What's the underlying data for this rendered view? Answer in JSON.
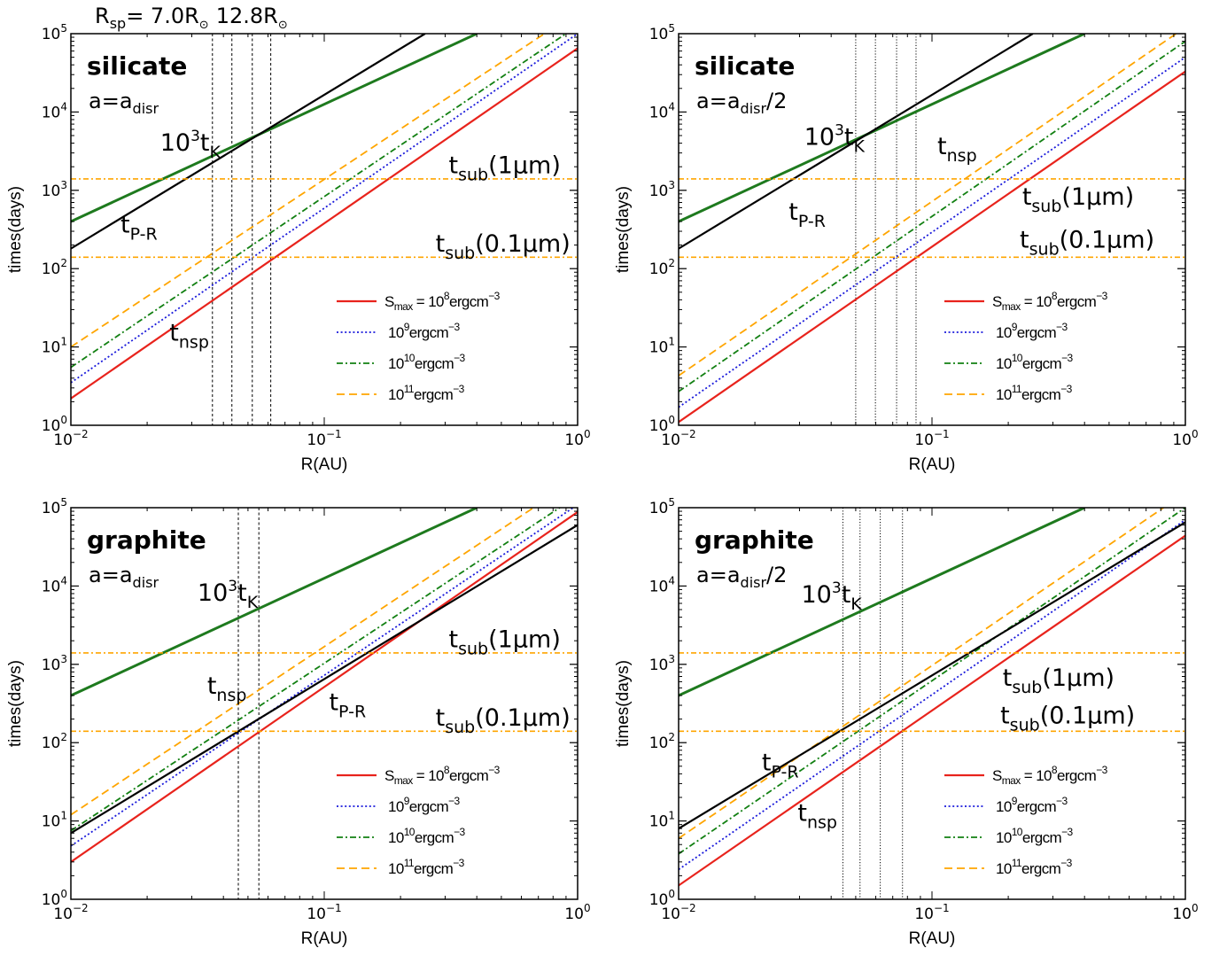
{
  "top_annotation": {
    "prefix": "R",
    "prefix_sub": "sp",
    "value1": "= 7.0R",
    "value2": "12.8R",
    "sun_symbol": "⊙"
  },
  "chart_data": [
    {
      "type": "line",
      "panel": "top-left",
      "material": "silicate",
      "size_label": {
        "base": "a=a",
        "sub": "disr",
        "suffix": ""
      },
      "xlabel": "R(AU)",
      "ylabel": "times(days)",
      "xscale": "log",
      "yscale": "log",
      "xlim": [
        0.01,
        1
      ],
      "ylim": [
        1,
        100000
      ],
      "x_ticks": [
        {
          "base": "10",
          "exp": "−2"
        },
        {
          "base": "10",
          "exp": "−1"
        },
        {
          "base": "10",
          "exp": "0"
        }
      ],
      "y_ticks": [
        {
          "base": "10",
          "exp": "0"
        },
        {
          "base": "10",
          "exp": "1"
        },
        {
          "base": "10",
          "exp": "2"
        },
        {
          "base": "10",
          "exp": "3"
        },
        {
          "base": "10",
          "exp": "4"
        },
        {
          "base": "10",
          "exp": "5"
        }
      ],
      "series": [
        {
          "key": "s8",
          "x": [
            0.01,
            1
          ],
          "y": [
            2.2,
            65000
          ]
        },
        {
          "key": "s9",
          "x": [
            0.01,
            1
          ],
          "y": [
            3.5,
            100000
          ]
        },
        {
          "key": "s10",
          "x": [
            0.01,
            0.9
          ],
          "y": [
            5.5,
            100000
          ]
        },
        {
          "key": "s11",
          "x": [
            0.01,
            0.74
          ],
          "y": [
            10,
            100000
          ]
        },
        {
          "key": "tk",
          "x": [
            0.01,
            0.4
          ],
          "y": [
            400,
            100000
          ]
        },
        {
          "key": "tpr",
          "x": [
            0.01,
            0.25
          ],
          "y": [
            180,
            100000
          ]
        },
        {
          "key": "sub1",
          "x": [
            0.01,
            1
          ],
          "y": [
            1400,
            1400
          ]
        },
        {
          "key": "sub01",
          "x": [
            0.01,
            1
          ],
          "y": [
            140,
            140
          ]
        }
      ],
      "vlines": [
        0.0362,
        0.0432,
        0.052,
        0.0615
      ],
      "vline_style": "dashed",
      "annotations": [
        {
          "base": "10",
          "sup": "3",
          "mid": "t",
          "sub": "K",
          "tail": "",
          "x": 0.0225,
          "y": 3200
        },
        {
          "base": "t",
          "sup": "",
          "mid": "",
          "sub": "P-R",
          "tail": "",
          "x": 0.0157,
          "y": 290
        },
        {
          "base": "t",
          "sup": "",
          "mid": "",
          "sub": "nsp",
          "tail": "",
          "x": 0.0245,
          "y": 12
        },
        {
          "base": "t",
          "sup": "",
          "mid": "",
          "sub": "sub",
          "tail": "(1μm)",
          "x": 0.31,
          "y": 1650
        },
        {
          "base": "t",
          "sup": "",
          "mid": "",
          "sub": "sub",
          "tail": "(0.1μm)",
          "x": 0.275,
          "y": 165
        }
      ],
      "legend": [
        {
          "key": "s8",
          "prefix": "S",
          "prefix_sub": "max",
          "base": " = 10",
          "exp": "8",
          "unit": "ergcm",
          "unit_exp": "−3"
        },
        {
          "key": "s9",
          "prefix": "",
          "prefix_sub": "",
          "base": "10",
          "exp": "9",
          "unit": "ergcm",
          "unit_exp": "−3"
        },
        {
          "key": "s10",
          "prefix": "",
          "prefix_sub": "",
          "base": "10",
          "exp": "10",
          "unit": "ergcm",
          "unit_exp": "−3"
        },
        {
          "key": "s11",
          "prefix": "",
          "prefix_sub": "",
          "base": "10",
          "exp": "11",
          "unit": "ergcm",
          "unit_exp": "−3"
        }
      ]
    },
    {
      "type": "line",
      "panel": "top-right",
      "material": "silicate",
      "size_label": {
        "base": "a=a",
        "sub": "disr",
        "suffix": "/2"
      },
      "xlabel": "R(AU)",
      "ylabel": "times(days)",
      "xscale": "log",
      "yscale": "log",
      "xlim": [
        0.01,
        1
      ],
      "ylim": [
        1,
        100000
      ],
      "x_ticks": [
        {
          "base": "10",
          "exp": "−2"
        },
        {
          "base": "10",
          "exp": "−1"
        },
        {
          "base": "10",
          "exp": "0"
        }
      ],
      "y_ticks": [
        {
          "base": "10",
          "exp": "0"
        },
        {
          "base": "10",
          "exp": "1"
        },
        {
          "base": "10",
          "exp": "2"
        },
        {
          "base": "10",
          "exp": "3"
        },
        {
          "base": "10",
          "exp": "4"
        },
        {
          "base": "10",
          "exp": "5"
        }
      ],
      "series": [
        {
          "key": "s8",
          "x": [
            0.01,
            1
          ],
          "y": [
            1.1,
            33000
          ]
        },
        {
          "key": "s9",
          "x": [
            0.01,
            1
          ],
          "y": [
            1.7,
            50000
          ]
        },
        {
          "key": "s10",
          "x": [
            0.01,
            1
          ],
          "y": [
            2.7,
            80000
          ]
        },
        {
          "key": "s11",
          "x": [
            0.01,
            0.92
          ],
          "y": [
            4.3,
            100000
          ]
        },
        {
          "key": "tk",
          "x": [
            0.01,
            0.4
          ],
          "y": [
            400,
            100000
          ]
        },
        {
          "key": "tpr",
          "x": [
            0.01,
            0.25
          ],
          "y": [
            180,
            100000
          ]
        },
        {
          "key": "sub1",
          "x": [
            0.01,
            1
          ],
          "y": [
            1400,
            1400
          ]
        },
        {
          "key": "sub01",
          "x": [
            0.01,
            1
          ],
          "y": [
            140,
            140
          ]
        }
      ],
      "vlines": [
        0.05,
        0.0598,
        0.0725,
        0.0865
      ],
      "vline_style": "dotted",
      "annotations": [
        {
          "base": "10",
          "sup": "3",
          "mid": "t",
          "sub": "K",
          "tail": "",
          "x": 0.0313,
          "y": 3800
        },
        {
          "base": "t",
          "sup": "",
          "mid": "",
          "sub": "P-R",
          "tail": "",
          "x": 0.0272,
          "y": 420
        },
        {
          "base": "t",
          "sup": "",
          "mid": "",
          "sub": "nsp",
          "tail": "",
          "x": 0.105,
          "y": 2900
        },
        {
          "base": "t",
          "sup": "",
          "mid": "",
          "sub": "sub",
          "tail": "(1μm)",
          "x": 0.227,
          "y": 660
        },
        {
          "base": "t",
          "sup": "",
          "mid": "",
          "sub": "sub",
          "tail": "(0.1μm)",
          "x": 0.222,
          "y": 185
        }
      ],
      "legend": [
        {
          "key": "s8",
          "prefix": "S",
          "prefix_sub": "max",
          "base": " = 10",
          "exp": "8",
          "unit": "ergcm",
          "unit_exp": "−3"
        },
        {
          "key": "s9",
          "prefix": "",
          "prefix_sub": "",
          "base": "10",
          "exp": "9",
          "unit": "ergcm",
          "unit_exp": "−3"
        },
        {
          "key": "s10",
          "prefix": "",
          "prefix_sub": "",
          "base": "10",
          "exp": "10",
          "unit": "ergcm",
          "unit_exp": "−3"
        },
        {
          "key": "s11",
          "prefix": "",
          "prefix_sub": "",
          "base": "10",
          "exp": "11",
          "unit": "ergcm",
          "unit_exp": "−3"
        }
      ]
    },
    {
      "type": "line",
      "panel": "bottom-left",
      "material": "graphite",
      "size_label": {
        "base": "a=a",
        "sub": "disr",
        "suffix": ""
      },
      "xlabel": "R(AU)",
      "ylabel": "times(days)",
      "xscale": "log",
      "yscale": "log",
      "xlim": [
        0.01,
        1
      ],
      "ylim": [
        1,
        100000
      ],
      "x_ticks": [
        {
          "base": "10",
          "exp": "−2"
        },
        {
          "base": "10",
          "exp": "−1"
        },
        {
          "base": "10",
          "exp": "0"
        }
      ],
      "y_ticks": [
        {
          "base": "10",
          "exp": "0"
        },
        {
          "base": "10",
          "exp": "1"
        },
        {
          "base": "10",
          "exp": "2"
        },
        {
          "base": "10",
          "exp": "3"
        },
        {
          "base": "10",
          "exp": "4"
        },
        {
          "base": "10",
          "exp": "5"
        }
      ],
      "series": [
        {
          "key": "s8",
          "x": [
            0.01,
            1
          ],
          "y": [
            3,
            88000
          ]
        },
        {
          "key": "s9",
          "x": [
            0.01,
            0.96
          ],
          "y": [
            4.8,
            100000
          ]
        },
        {
          "key": "s10",
          "x": [
            0.01,
            0.85
          ],
          "y": [
            7.5,
            100000
          ]
        },
        {
          "key": "s11",
          "x": [
            0.01,
            0.67
          ],
          "y": [
            12,
            100000
          ]
        },
        {
          "key": "tk",
          "x": [
            0.01,
            0.4
          ],
          "y": [
            400,
            100000
          ]
        },
        {
          "key": "tpr",
          "x": [
            0.01,
            1
          ],
          "y": [
            7,
            60000
          ]
        },
        {
          "key": "sub1",
          "x": [
            0.01,
            1
          ],
          "y": [
            1400,
            1400
          ]
        },
        {
          "key": "sub01",
          "x": [
            0.01,
            1
          ],
          "y": [
            140,
            140
          ]
        }
      ],
      "vlines": [
        0.0458,
        0.0552
      ],
      "vline_style": "dashed",
      "annotations": [
        {
          "base": "10",
          "sup": "3",
          "mid": "t",
          "sub": "K",
          "tail": "",
          "x": 0.0316,
          "y": 6500
        },
        {
          "base": "t",
          "sup": "",
          "mid": "",
          "sub": "nsp",
          "tail": "",
          "x": 0.0345,
          "y": 420
        },
        {
          "base": "t",
          "sup": "",
          "mid": "",
          "sub": "P-R",
          "tail": "",
          "x": 0.1045,
          "y": 260
        },
        {
          "base": "t",
          "sup": "",
          "mid": "",
          "sub": "sub",
          "tail": "(1μm)",
          "x": 0.31,
          "y": 1650
        },
        {
          "base": "t",
          "sup": "",
          "mid": "",
          "sub": "sub",
          "tail": "(0.1μm)",
          "x": 0.275,
          "y": 165
        }
      ],
      "legend": [
        {
          "key": "s8",
          "prefix": "S",
          "prefix_sub": "max",
          "base": " = 10",
          "exp": "8",
          "unit": "ergcm",
          "unit_exp": "−3"
        },
        {
          "key": "s9",
          "prefix": "",
          "prefix_sub": "",
          "base": "10",
          "exp": "9",
          "unit": "ergcm",
          "unit_exp": "−3"
        },
        {
          "key": "s10",
          "prefix": "",
          "prefix_sub": "",
          "base": "10",
          "exp": "10",
          "unit": "ergcm",
          "unit_exp": "−3"
        },
        {
          "key": "s11",
          "prefix": "",
          "prefix_sub": "",
          "base": "10",
          "exp": "11",
          "unit": "ergcm",
          "unit_exp": "−3"
        }
      ]
    },
    {
      "type": "line",
      "panel": "bottom-right",
      "material": "graphite",
      "size_label": {
        "base": "a=a",
        "sub": "disr",
        "suffix": "/2"
      },
      "xlabel": "R(AU)",
      "ylabel": "times(days)",
      "xscale": "log",
      "yscale": "log",
      "xlim": [
        0.01,
        1
      ],
      "ylim": [
        1,
        100000
      ],
      "x_ticks": [
        {
          "base": "10",
          "exp": "−2"
        },
        {
          "base": "10",
          "exp": "−1"
        },
        {
          "base": "10",
          "exp": "0"
        }
      ],
      "y_ticks": [
        {
          "base": "10",
          "exp": "0"
        },
        {
          "base": "10",
          "exp": "1"
        },
        {
          "base": "10",
          "exp": "2"
        },
        {
          "base": "10",
          "exp": "3"
        },
        {
          "base": "10",
          "exp": "4"
        },
        {
          "base": "10",
          "exp": "5"
        }
      ],
      "series": [
        {
          "key": "s8",
          "x": [
            0.01,
            1
          ],
          "y": [
            1.5,
            44000
          ]
        },
        {
          "key": "s9",
          "x": [
            0.01,
            1
          ],
          "y": [
            2.4,
            70000
          ]
        },
        {
          "key": "s10",
          "x": [
            0.01,
            1
          ],
          "y": [
            3.8,
            100000
          ]
        },
        {
          "key": "s11",
          "x": [
            0.01,
            0.82
          ],
          "y": [
            6,
            100000
          ]
        },
        {
          "key": "tk",
          "x": [
            0.01,
            0.4
          ],
          "y": [
            400,
            100000
          ]
        },
        {
          "key": "tpr",
          "x": [
            0.01,
            1
          ],
          "y": [
            8,
            65000
          ]
        },
        {
          "key": "sub1",
          "x": [
            0.01,
            1
          ],
          "y": [
            1400,
            1400
          ]
        },
        {
          "key": "sub01",
          "x": [
            0.01,
            1
          ],
          "y": [
            140,
            140
          ]
        }
      ],
      "vlines": [
        0.0445,
        0.052,
        0.0625,
        0.0765
      ],
      "vline_style": "dotted",
      "annotations": [
        {
          "base": "10",
          "sup": "3",
          "mid": "t",
          "sub": "K",
          "tail": "",
          "x": 0.0305,
          "y": 6200
        },
        {
          "base": "t",
          "sup": "",
          "mid": "",
          "sub": "P-R",
          "tail": "",
          "x": 0.0213,
          "y": 44
        },
        {
          "base": "t",
          "sup": "",
          "mid": "",
          "sub": "nsp",
          "tail": "",
          "x": 0.0295,
          "y": 10
        },
        {
          "base": "t",
          "sup": "",
          "mid": "",
          "sub": "sub",
          "tail": "(1μm)",
          "x": 0.19,
          "y": 530
        },
        {
          "base": "t",
          "sup": "",
          "mid": "",
          "sub": "sub",
          "tail": "(0.1μm)",
          "x": 0.186,
          "y": 175
        }
      ],
      "legend": [
        {
          "key": "s8",
          "prefix": "S",
          "prefix_sub": "max",
          "base": " = 10",
          "exp": "8",
          "unit": "ergcm",
          "unit_exp": "−3"
        },
        {
          "key": "s9",
          "prefix": "",
          "prefix_sub": "",
          "base": "10",
          "exp": "9",
          "unit": "ergcm",
          "unit_exp": "−3"
        },
        {
          "key": "s10",
          "prefix": "",
          "prefix_sub": "",
          "base": "10",
          "exp": "10",
          "unit": "ergcm",
          "unit_exp": "−3"
        },
        {
          "key": "s11",
          "prefix": "",
          "prefix_sub": "",
          "base": "10",
          "exp": "11",
          "unit": "ergcm",
          "unit_exp": "−3"
        }
      ]
    }
  ],
  "styles": {
    "s8": {
      "color": "#e8231c",
      "dash": "",
      "width": 2.2
    },
    "s9": {
      "color": "#1a1adb",
      "dash": "2 2.6",
      "width": 1.8
    },
    "s10": {
      "color": "#128012",
      "dash": "7 3 2 3",
      "width": 1.8
    },
    "s11": {
      "color": "#ffa500",
      "dash": "9 5",
      "width": 1.8
    },
    "tk": {
      "color": "#1e7a1e",
      "dash": "",
      "width": 3.0
    },
    "tpr": {
      "color": "#000000",
      "dash": "",
      "width": 2.2
    },
    "sub1": {
      "color": "#ffa500",
      "dash": "6 3 2 3",
      "width": 1.6
    },
    "sub01": {
      "color": "#ffa500",
      "dash": "6 3 2 3",
      "width": 1.6
    }
  }
}
